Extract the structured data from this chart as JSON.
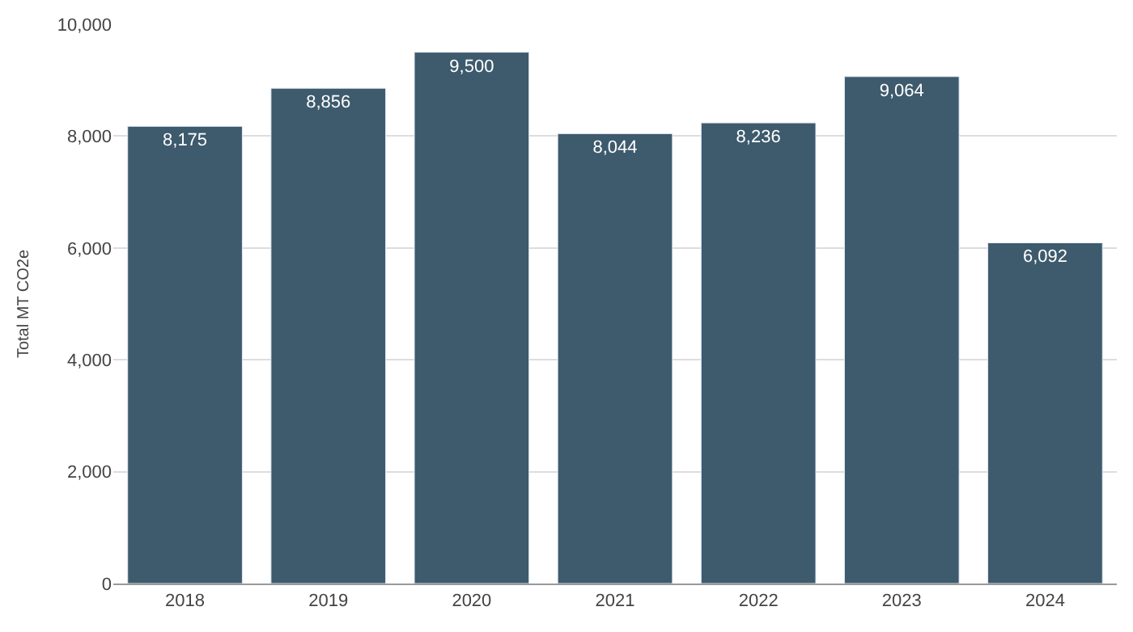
{
  "chart_data": {
    "type": "bar",
    "ylabel": "Total MT CO2e",
    "categories": [
      "2018",
      "2019",
      "2020",
      "2021",
      "2022",
      "2023",
      "2024"
    ],
    "values": [
      8175,
      8856,
      9500,
      8044,
      8236,
      9064,
      6092
    ],
    "value_labels": [
      "8,175",
      "8,856",
      "9,500",
      "8,044",
      "8,236",
      "9,064",
      "6,092"
    ],
    "color": "#3e5a6d",
    "ylim": [
      0,
      10000
    ],
    "yticks": [
      {
        "value": 0,
        "label": "0"
      },
      {
        "value": 2000,
        "label": "2,000"
      },
      {
        "value": 4000,
        "label": "4,000"
      },
      {
        "value": 6000,
        "label": "6,000"
      },
      {
        "value": 8000,
        "label": "8,000"
      },
      {
        "value": 10000,
        "label": "10,000"
      }
    ],
    "grid": "y",
    "legend": false
  }
}
